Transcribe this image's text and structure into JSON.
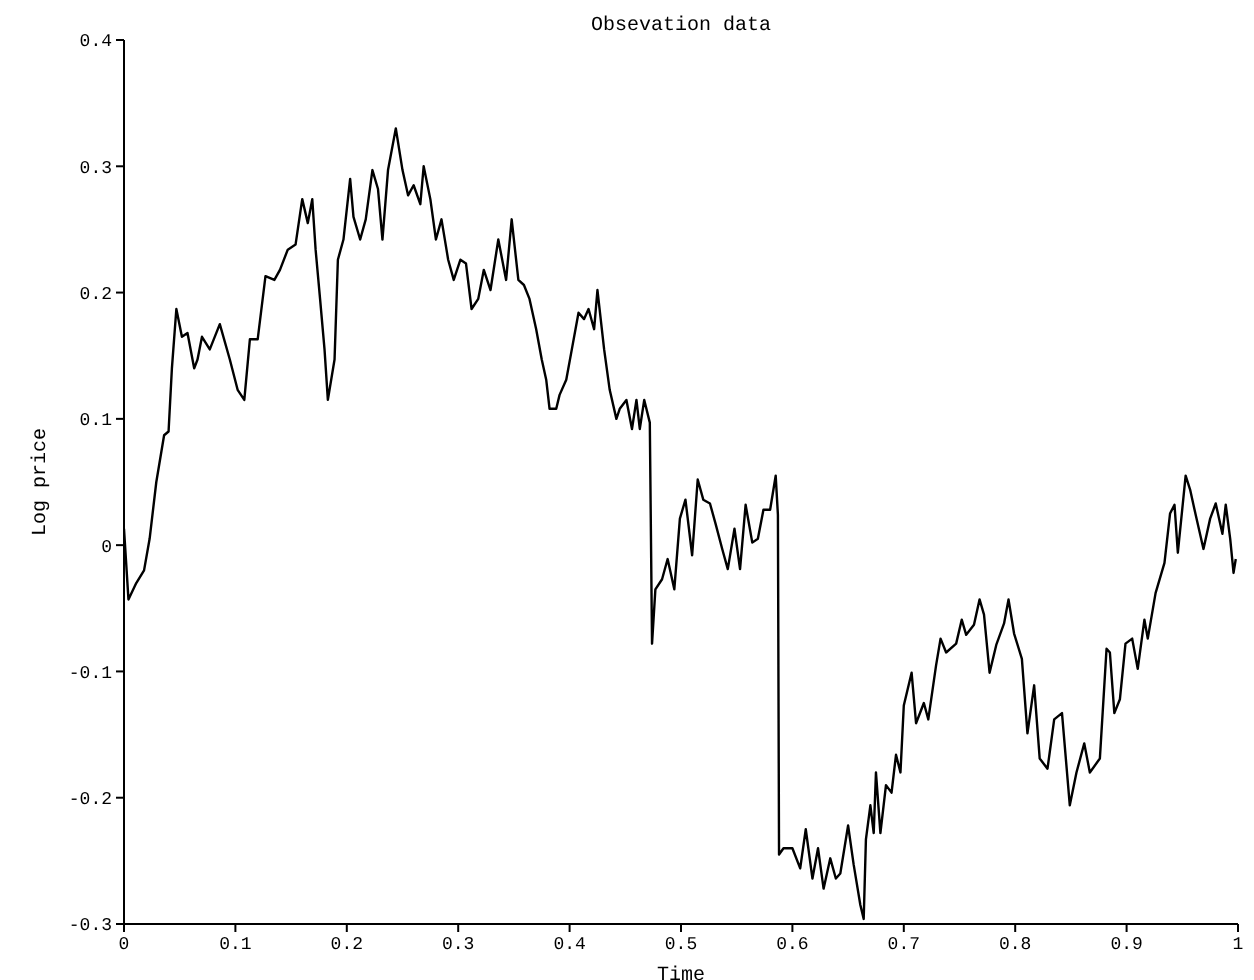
{
  "chart_data": {
    "type": "line",
    "title": "Obsevation data",
    "xlabel": "Time",
    "ylabel": "Log price",
    "xlim": [
      0,
      1
    ],
    "ylim": [
      -0.3,
      0.4
    ],
    "xticks": [
      0,
      0.1,
      0.2,
      0.3,
      0.4,
      0.5,
      0.6,
      0.7,
      0.8,
      0.9,
      1
    ],
    "yticks": [
      -0.3,
      -0.2,
      -0.1,
      0,
      0.1,
      0.2,
      0.3,
      0.4
    ],
    "grid": false,
    "legend": false,
    "marker": "none",
    "line_style": "solid",
    "series": [
      {
        "color": "#000000",
        "x": [
          0,
          0.004,
          0.011,
          0.018,
          0.023,
          0.029,
          0.036,
          0.04,
          0.043,
          0.047,
          0.052,
          0.057,
          0.063,
          0.066,
          0.07,
          0.077,
          0.086,
          0.095,
          0.102,
          0.108,
          0.113,
          0.12,
          0.127,
          0.135,
          0.14,
          0.147,
          0.154,
          0.16,
          0.165,
          0.169,
          0.172,
          0.176,
          0.18,
          0.183,
          0.189,
          0.192,
          0.197,
          0.203,
          0.206,
          0.212,
          0.217,
          0.223,
          0.228,
          0.232,
          0.237,
          0.244,
          0.25,
          0.255,
          0.26,
          0.266,
          0.269,
          0.275,
          0.28,
          0.285,
          0.291,
          0.296,
          0.302,
          0.307,
          0.312,
          0.318,
          0.323,
          0.329,
          0.336,
          0.343,
          0.348,
          0.354,
          0.359,
          0.364,
          0.37,
          0.375,
          0.379,
          0.382,
          0.388,
          0.391,
          0.397,
          0.402,
          0.408,
          0.413,
          0.417,
          0.422,
          0.425,
          0.431,
          0.436,
          0.442,
          0.445,
          0.451,
          0.456,
          0.46,
          0.463,
          0.467,
          0.472,
          0.474,
          0.477,
          0.483,
          0.488,
          0.494,
          0.499,
          0.504,
          0.51,
          0.515,
          0.52,
          0.526,
          0.531,
          0.537,
          0.542,
          0.548,
          0.553,
          0.558,
          0.564,
          0.569,
          0.574,
          0.58,
          0.585,
          0.587,
          0.588,
          0.592,
          0.6,
          0.607,
          0.612,
          0.618,
          0.623,
          0.628,
          0.634,
          0.639,
          0.643,
          0.65,
          0.655,
          0.661,
          0.664,
          0.666,
          0.67,
          0.673,
          0.675,
          0.679,
          0.684,
          0.689,
          0.693,
          0.697,
          0.7,
          0.707,
          0.711,
          0.718,
          0.722,
          0.729,
          0.733,
          0.738,
          0.747,
          0.752,
          0.756,
          0.763,
          0.768,
          0.772,
          0.777,
          0.783,
          0.79,
          0.794,
          0.799,
          0.806,
          0.811,
          0.817,
          0.822,
          0.829,
          0.835,
          0.842,
          0.849,
          0.855,
          0.862,
          0.867,
          0.876,
          0.882,
          0.885,
          0.889,
          0.894,
          0.899,
          0.905,
          0.91,
          0.916,
          0.919,
          0.926,
          0.934,
          0.939,
          0.943,
          0.946,
          0.953,
          0.957,
          0.962,
          0.969,
          0.975,
          0.98,
          0.986,
          0.989,
          0.993,
          0.996,
          0.998
        ],
        "values": [
          0.013,
          -0.043,
          -0.03,
          -0.02,
          0.005,
          0.05,
          0.087,
          0.09,
          0.14,
          0.187,
          0.165,
          0.168,
          0.14,
          0.147,
          0.165,
          0.155,
          0.175,
          0.147,
          0.123,
          0.115,
          0.163,
          0.163,
          0.213,
          0.21,
          0.218,
          0.234,
          0.238,
          0.274,
          0.255,
          0.274,
          0.234,
          0.195,
          0.155,
          0.115,
          0.147,
          0.226,
          0.242,
          0.29,
          0.26,
          0.242,
          0.258,
          0.297,
          0.282,
          0.242,
          0.297,
          0.33,
          0.297,
          0.277,
          0.285,
          0.27,
          0.3,
          0.274,
          0.242,
          0.258,
          0.226,
          0.21,
          0.226,
          0.223,
          0.187,
          0.195,
          0.218,
          0.202,
          0.242,
          0.21,
          0.258,
          0.21,
          0.206,
          0.195,
          0.171,
          0.147,
          0.131,
          0.108,
          0.108,
          0.119,
          0.131,
          0.155,
          0.184,
          0.179,
          0.187,
          0.171,
          0.202,
          0.155,
          0.123,
          0.1,
          0.108,
          0.115,
          0.092,
          0.115,
          0.092,
          0.115,
          0.097,
          -0.078,
          -0.035,
          -0.027,
          -0.011,
          -0.035,
          0.021,
          0.036,
          -0.008,
          0.052,
          0.036,
          0.033,
          0.017,
          -0.003,
          -0.019,
          0.013,
          -0.019,
          0.032,
          0.002,
          0.005,
          0.028,
          0.028,
          0.055,
          0.024,
          -0.245,
          -0.24,
          -0.24,
          -0.256,
          -0.225,
          -0.264,
          -0.24,
          -0.272,
          -0.248,
          -0.264,
          -0.26,
          -0.222,
          -0.253,
          -0.285,
          -0.296,
          -0.233,
          -0.206,
          -0.228,
          -0.18,
          -0.228,
          -0.19,
          -0.196,
          -0.166,
          -0.18,
          -0.127,
          -0.101,
          -0.141,
          -0.125,
          -0.138,
          -0.095,
          -0.074,
          -0.085,
          -0.078,
          -0.059,
          -0.071,
          -0.063,
          -0.043,
          -0.055,
          -0.101,
          -0.079,
          -0.062,
          -0.043,
          -0.07,
          -0.09,
          -0.149,
          -0.111,
          -0.169,
          -0.177,
          -0.138,
          -0.133,
          -0.206,
          -0.18,
          -0.157,
          -0.18,
          -0.169,
          -0.082,
          -0.085,
          -0.133,
          -0.122,
          -0.078,
          -0.074,
          -0.098,
          -0.059,
          -0.074,
          -0.038,
          -0.014,
          0.025,
          0.032,
          -0.006,
          0.055,
          0.044,
          0.024,
          -0.003,
          0.021,
          0.033,
          0.009,
          0.032,
          0.005,
          -0.022,
          -0.011
        ]
      }
    ]
  }
}
